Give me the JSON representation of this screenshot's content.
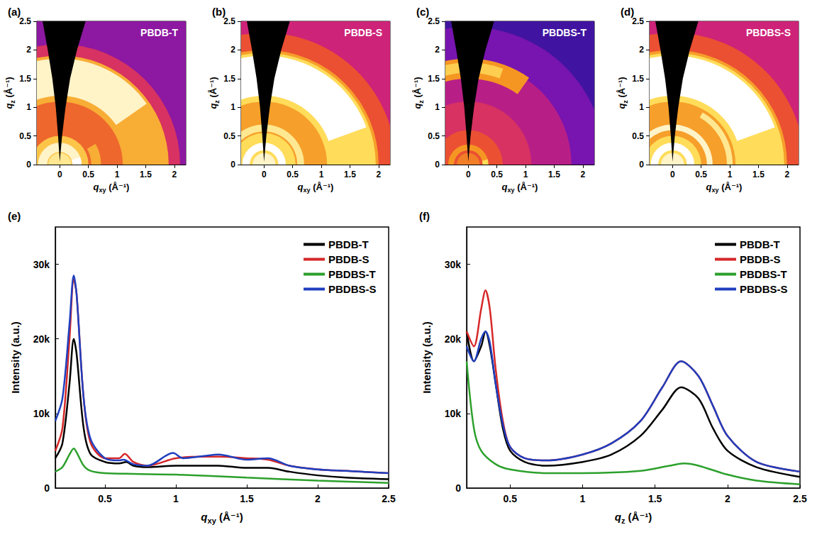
{
  "chart_data": [
    {
      "type": "heatmap",
      "panel": "(a)",
      "title": "PBDB-T",
      "x_label": "qxy (Å⁻¹)",
      "y_label": "qz (Å⁻¹)",
      "xlim": [
        -0.4,
        2.2
      ],
      "xticks": [
        0,
        0.5,
        1,
        1.5,
        2
      ],
      "ylim": [
        0,
        2.5
      ],
      "yticks": [
        0,
        0.5,
        1,
        1.5,
        2,
        2.5
      ],
      "intensity_lim": [
        0,
        1
      ],
      "bands": [
        {
          "q": [
            0,
            3.6
          ],
          "angle": [
            0,
            180
          ],
          "intensity": 0.25
        },
        {
          "q": [
            0,
            2.1
          ],
          "angle": [
            0,
            180
          ],
          "intensity": 0.45
        },
        {
          "q": [
            0,
            1.9
          ],
          "angle": [
            0,
            180
          ],
          "intensity": 0.6
        },
        {
          "q": [
            1.1,
            1.9
          ],
          "angle": [
            0,
            180
          ],
          "intensity": 0.75
        },
        {
          "q": [
            1.2,
            1.85
          ],
          "angle": [
            35,
            150
          ],
          "intensity": 0.95
        },
        {
          "q": [
            0.55,
            0.72
          ],
          "angle": [
            0,
            30
          ],
          "intensity": 0.75
        },
        {
          "q": [
            0,
            0.5
          ],
          "angle": [
            0,
            180
          ],
          "intensity": 0.8
        },
        {
          "q": [
            0.22,
            0.38
          ],
          "angle": [
            0,
            180
          ],
          "intensity": 0.95
        },
        {
          "q": [
            0.22,
            0.38
          ],
          "angle": [
            0,
            20
          ],
          "intensity": 1
        },
        {
          "q": [
            0,
            0.2
          ],
          "angle": [
            0,
            180
          ],
          "intensity": 0.9
        }
      ],
      "missing_wedge": {
        "qxy": [
          0,
          -0.03,
          -0.07,
          -0.13,
          -0.21,
          -0.3,
          0.45,
          0.3,
          0.18,
          0.1,
          0.04
        ],
        "qz": [
          0.05,
          0.5,
          1,
          1.5,
          2,
          2.5,
          2.5,
          2,
          1.5,
          1,
          0.5
        ]
      }
    },
    {
      "type": "heatmap",
      "panel": "(b)",
      "title": "PBDB-S",
      "x_label": "qxy (Å⁻¹)",
      "y_label": "qz (Å⁻¹)",
      "xlim": [
        -0.4,
        2.2
      ],
      "xticks": [
        0,
        0.5,
        1,
        1.5,
        2
      ],
      "ylim": [
        0,
        2.5
      ],
      "yticks": [
        0,
        0.5,
        1,
        1.5,
        2,
        2.5
      ],
      "intensity_lim": [
        0,
        1
      ],
      "bands": [
        {
          "q": [
            0,
            3.6
          ],
          "angle": [
            0,
            180
          ],
          "intensity": 0.4
        },
        {
          "q": [
            0,
            2.3
          ],
          "angle": [
            0,
            180
          ],
          "intensity": 0.55
        },
        {
          "q": [
            0,
            2.0
          ],
          "angle": [
            0,
            180
          ],
          "intensity": 0.72
        },
        {
          "q": [
            1.1,
            1.95
          ],
          "angle": [
            0,
            180
          ],
          "intensity": 0.85
        },
        {
          "q": [
            1.2,
            1.9
          ],
          "angle": [
            20,
            150
          ],
          "intensity": 1
        },
        {
          "q": [
            0,
            0.55
          ],
          "angle": [
            0,
            180
          ],
          "intensity": 0.85
        },
        {
          "q": [
            0.58,
            0.7
          ],
          "angle": [
            0,
            180
          ],
          "intensity": 0.9
        },
        {
          "q": [
            0.25,
            0.38
          ],
          "angle": [
            0,
            180
          ],
          "intensity": 1
        },
        {
          "q": [
            0,
            0.2
          ],
          "angle": [
            0,
            180
          ],
          "intensity": 0.95
        }
      ],
      "missing_wedge": {
        "qxy": [
          0,
          -0.03,
          -0.07,
          -0.13,
          -0.21,
          -0.3,
          0.45,
          0.3,
          0.18,
          0.1,
          0.04
        ],
        "qz": [
          0.05,
          0.5,
          1,
          1.5,
          2,
          2.5,
          2.5,
          2,
          1.5,
          1,
          0.5
        ]
      }
    },
    {
      "type": "heatmap",
      "panel": "(c)",
      "title": "PBDBS-T",
      "x_label": "qxy (Å⁻¹)",
      "y_label": "qz (Å⁻¹)",
      "xlim": [
        -0.4,
        2.2
      ],
      "xticks": [
        0,
        0.5,
        1,
        1.5,
        2
      ],
      "ylim": [
        0,
        2.5
      ],
      "yticks": [
        0,
        0.5,
        1,
        1.5,
        2,
        2.5
      ],
      "intensity_lim": [
        0,
        1
      ],
      "bands": [
        {
          "q": [
            0,
            3.6
          ],
          "angle": [
            0,
            180
          ],
          "intensity": 0.08
        },
        {
          "q": [
            0,
            2.4
          ],
          "angle": [
            0,
            180
          ],
          "intensity": 0.2
        },
        {
          "q": [
            0,
            1.8
          ],
          "angle": [
            0,
            180
          ],
          "intensity": 0.35
        },
        {
          "q": [
            1.5,
            1.85
          ],
          "angle": [
            55,
            115
          ],
          "intensity": 0.7
        },
        {
          "q": [
            1.6,
            1.78
          ],
          "angle": [
            70,
            105
          ],
          "intensity": 0.82
        },
        {
          "q": [
            0,
            1.1
          ],
          "angle": [
            0,
            180
          ],
          "intensity": 0.45
        },
        {
          "q": [
            0,
            0.6
          ],
          "angle": [
            0,
            180
          ],
          "intensity": 0.55
        },
        {
          "q": [
            0.25,
            0.35
          ],
          "angle": [
            0,
            180
          ],
          "intensity": 0.7
        },
        {
          "q": [
            0.25,
            0.35
          ],
          "angle": [
            0,
            15
          ],
          "intensity": 0.85
        },
        {
          "q": [
            0,
            0.2
          ],
          "angle": [
            0,
            180
          ],
          "intensity": 0.65
        }
      ],
      "missing_wedge": {
        "qxy": [
          0,
          -0.03,
          -0.07,
          -0.13,
          -0.21,
          -0.3,
          0.45,
          0.3,
          0.18,
          0.1,
          0.04
        ],
        "qz": [
          0.05,
          0.5,
          1,
          1.5,
          2,
          2.5,
          2.5,
          2,
          1.5,
          1,
          0.5
        ]
      }
    },
    {
      "type": "heatmap",
      "panel": "(d)",
      "title": "PBDBS-S",
      "x_label": "qxy (Å⁻¹)",
      "y_label": "qz (Å⁻¹)",
      "xlim": [
        -0.4,
        2.2
      ],
      "xticks": [
        0,
        0.5,
        1,
        1.5,
        2
      ],
      "ylim": [
        0,
        2.5
      ],
      "yticks": [
        0,
        0.5,
        1,
        1.5,
        2,
        2.5
      ],
      "intensity_lim": [
        0,
        1
      ],
      "bands": [
        {
          "q": [
            0,
            3.6
          ],
          "angle": [
            0,
            180
          ],
          "intensity": 0.4
        },
        {
          "q": [
            0,
            2.3
          ],
          "angle": [
            0,
            180
          ],
          "intensity": 0.55
        },
        {
          "q": [
            0,
            2.0
          ],
          "angle": [
            0,
            180
          ],
          "intensity": 0.72
        },
        {
          "q": [
            1.1,
            1.95
          ],
          "angle": [
            0,
            180
          ],
          "intensity": 0.85
        },
        {
          "q": [
            1.2,
            1.9
          ],
          "angle": [
            20,
            150
          ],
          "intensity": 1
        },
        {
          "q": [
            0.95,
            1.05
          ],
          "angle": [
            0,
            60
          ],
          "intensity": 0.9
        },
        {
          "q": [
            0,
            0.5
          ],
          "angle": [
            0,
            180
          ],
          "intensity": 0.85
        },
        {
          "q": [
            0.6,
            0.7
          ],
          "angle": [
            0,
            180
          ],
          "intensity": 0.95
        },
        {
          "q": [
            0.25,
            0.38
          ],
          "angle": [
            0,
            180
          ],
          "intensity": 1
        },
        {
          "q": [
            0,
            0.2
          ],
          "angle": [
            0,
            180
          ],
          "intensity": 0.95
        }
      ],
      "missing_wedge": {
        "qxy": [
          0,
          -0.03,
          -0.07,
          -0.13,
          -0.21,
          -0.3,
          0.45,
          0.3,
          0.18,
          0.1,
          0.04
        ],
        "qz": [
          0.05,
          0.5,
          1,
          1.5,
          2,
          2.5,
          2.5,
          2,
          1.5,
          1,
          0.5
        ]
      }
    },
    {
      "type": "line",
      "panel": "(e)",
      "x_label": "qxy (Å⁻¹)",
      "y_label": "Intensity (a.u.)",
      "xlim": [
        0.15,
        2.5
      ],
      "xticks": [
        0.5,
        1,
        1.5,
        2,
        2.5
      ],
      "ylim": [
        0,
        35000
      ],
      "yticks": [
        0,
        {
          "value": 10000,
          "label": "10k"
        },
        {
          "value": 20000,
          "label": "20k"
        },
        {
          "value": 30000,
          "label": "30k"
        }
      ],
      "legend": "upper right",
      "series": [
        {
          "name": "PBDB-T",
          "color": "#000000",
          "x": [
            0.15,
            0.2,
            0.25,
            0.28,
            0.3,
            0.35,
            0.4,
            0.5,
            0.6,
            0.65,
            0.7,
            0.8,
            1.0,
            1.2,
            1.3,
            1.5,
            1.65,
            1.8,
            2.0,
            2.2,
            2.5
          ],
          "values": [
            4000,
            6000,
            14000,
            20000,
            18000,
            8000,
            4500,
            3500,
            3300,
            3500,
            3000,
            2800,
            3000,
            3000,
            3000,
            2700,
            2700,
            2200,
            1700,
            1400,
            1200
          ]
        },
        {
          "name": "PBDB-S",
          "color": "#d62728",
          "x": [
            0.15,
            0.2,
            0.25,
            0.28,
            0.3,
            0.35,
            0.4,
            0.5,
            0.6,
            0.64,
            0.7,
            0.8,
            1.0,
            1.2,
            1.3,
            1.5,
            1.65,
            1.8,
            2.0,
            2.2,
            2.5
          ],
          "values": [
            5000,
            8000,
            20000,
            28000,
            26000,
            12000,
            6000,
            4000,
            4000,
            4600,
            3500,
            3000,
            4000,
            4200,
            4200,
            4000,
            3800,
            3000,
            2500,
            2300,
            2000
          ]
        },
        {
          "name": "PBDBS-T",
          "color": "#2ca02c",
          "x": [
            0.15,
            0.2,
            0.25,
            0.28,
            0.3,
            0.35,
            0.4,
            0.5,
            0.7,
            1.0,
            1.5,
            2.0,
            2.5
          ],
          "values": [
            2200,
            2800,
            4500,
            5300,
            4800,
            3000,
            2300,
            2000,
            1900,
            1800,
            1400,
            1000,
            700
          ]
        },
        {
          "name": "PBDBS-S",
          "color": "#1f3fbf",
          "x": [
            0.15,
            0.2,
            0.25,
            0.28,
            0.3,
            0.35,
            0.4,
            0.5,
            0.6,
            0.63,
            0.7,
            0.8,
            0.98,
            1.05,
            1.2,
            1.3,
            1.5,
            1.65,
            1.8,
            2.0,
            2.2,
            2.5
          ],
          "values": [
            9000,
            12000,
            22000,
            28500,
            26000,
            12000,
            6500,
            4000,
            3700,
            3800,
            3200,
            3000,
            4700,
            4000,
            4300,
            4500,
            3800,
            4000,
            3000,
            2500,
            2300,
            2000
          ]
        }
      ]
    },
    {
      "type": "line",
      "panel": "(f)",
      "x_label": "qz (Å⁻¹)",
      "y_label": "Intensity (a.u.)",
      "xlim": [
        0.2,
        2.5
      ],
      "xticks": [
        0.5,
        1,
        1.5,
        2,
        2.5
      ],
      "ylim": [
        0,
        35000
      ],
      "yticks": [
        0,
        {
          "value": 10000,
          "label": "10k"
        },
        {
          "value": 20000,
          "label": "20k"
        },
        {
          "value": 30000,
          "label": "30k"
        }
      ],
      "legend": "upper right",
      "series": [
        {
          "name": "PBDB-T",
          "color": "#000000",
          "x": [
            0.2,
            0.25,
            0.3,
            0.33,
            0.36,
            0.4,
            0.45,
            0.5,
            0.6,
            0.75,
            1.0,
            1.2,
            1.4,
            1.55,
            1.68,
            1.8,
            1.9,
            2.0,
            2.2,
            2.5
          ],
          "values": [
            21000,
            17000,
            19000,
            21000,
            19000,
            14000,
            8000,
            5000,
            3500,
            3000,
            3500,
            4500,
            7000,
            10500,
            13500,
            12000,
            8000,
            5000,
            2800,
            1500
          ]
        },
        {
          "name": "PBDB-S",
          "color": "#d62728",
          "x": [
            0.2,
            0.25,
            0.3,
            0.33,
            0.36,
            0.4,
            0.45,
            0.5,
            0.6,
            0.75,
            1.0,
            1.2,
            1.4,
            1.55,
            1.68,
            1.8,
            1.9,
            2.0,
            2.2,
            2.5
          ],
          "values": [
            21000,
            19000,
            24000,
            26500,
            24000,
            16000,
            9000,
            5500,
            4000,
            3700,
            4500,
            6000,
            9000,
            13500,
            17000,
            15000,
            11000,
            7000,
            3500,
            2200
          ]
        },
        {
          "name": "PBDBS-T",
          "color": "#2ca02c",
          "x": [
            0.2,
            0.25,
            0.3,
            0.4,
            0.5,
            0.75,
            1.0,
            1.4,
            1.6,
            1.7,
            1.8,
            2.0,
            2.2,
            2.5
          ],
          "values": [
            17000,
            8000,
            5000,
            3200,
            2500,
            2000,
            2000,
            2300,
            3000,
            3300,
            3000,
            1800,
            1000,
            500
          ]
        },
        {
          "name": "PBDBS-S",
          "color": "#1f3fbf",
          "x": [
            0.2,
            0.25,
            0.3,
            0.33,
            0.36,
            0.4,
            0.45,
            0.5,
            0.6,
            0.75,
            1.0,
            1.2,
            1.4,
            1.55,
            1.68,
            1.8,
            1.9,
            2.0,
            2.2,
            2.5
          ],
          "values": [
            19000,
            17000,
            20000,
            21000,
            19500,
            14000,
            8500,
            5500,
            4000,
            3700,
            4500,
            6000,
            9000,
            13500,
            17000,
            15000,
            11000,
            7000,
            3500,
            2200
          ]
        }
      ]
    }
  ]
}
